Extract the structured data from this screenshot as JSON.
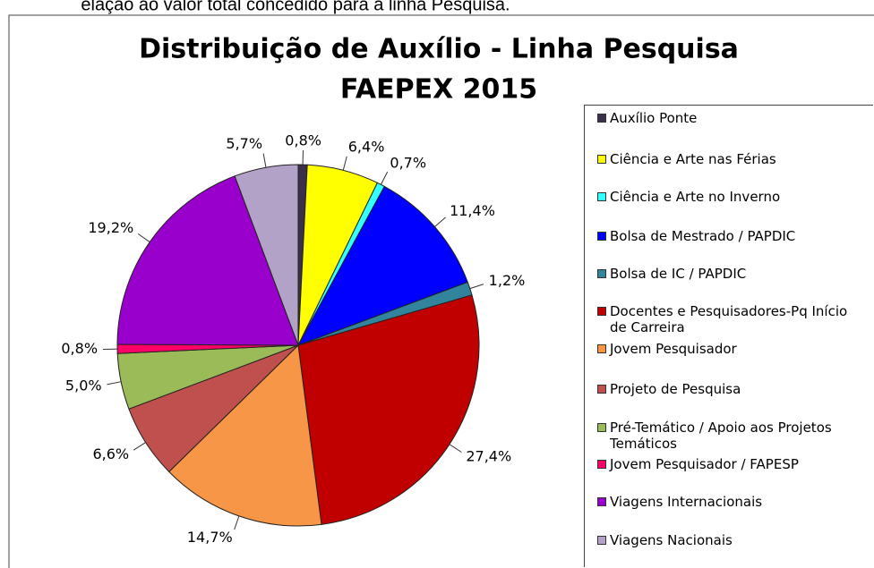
{
  "caption": "elação ao valor total concedido para a linha Pesquisa.",
  "chart_data": {
    "type": "pie",
    "title": "Distribuição de Auxílio - Linha Pesquisa",
    "subtitle": "FAEPEX 2015",
    "categories": [
      "Auxílio Ponte",
      "Ciência e Arte nas Férias",
      "Ciência e Arte no Inverno",
      "Bolsa de Mestrado / PAPDIC",
      "Bolsa de IC / PAPDIC",
      "Docentes e Pesquisadores-Pq Início de Carreira",
      "Jovem Pesquisador",
      "Projeto de Pesquisa",
      "Pré-Temático / Apoio aos Projetos Temáticos",
      "Jovem Pesquisador / FAPESP",
      "Viagens Internacionais",
      "Viagens Nacionais"
    ],
    "values": [
      0.8,
      6.4,
      0.7,
      11.4,
      1.2,
      27.4,
      14.7,
      6.6,
      5.0,
      0.8,
      19.2,
      5.7
    ],
    "value_labels": [
      "0,8%",
      "6,4%",
      "0,7%",
      "11,4%",
      "1,2%",
      "27,4%",
      "14,7%",
      "6,6%",
      "5,0%",
      "0,8%",
      "19,2%",
      "5,7%"
    ],
    "colors": [
      "#3b3049",
      "#ffff00",
      "#33ffff",
      "#0000ff",
      "#31849b",
      "#c00000",
      "#f79646",
      "#c0504d",
      "#9bbb59",
      "#ff0066",
      "#9900cc",
      "#b3a2c7"
    ],
    "legend": "right"
  }
}
